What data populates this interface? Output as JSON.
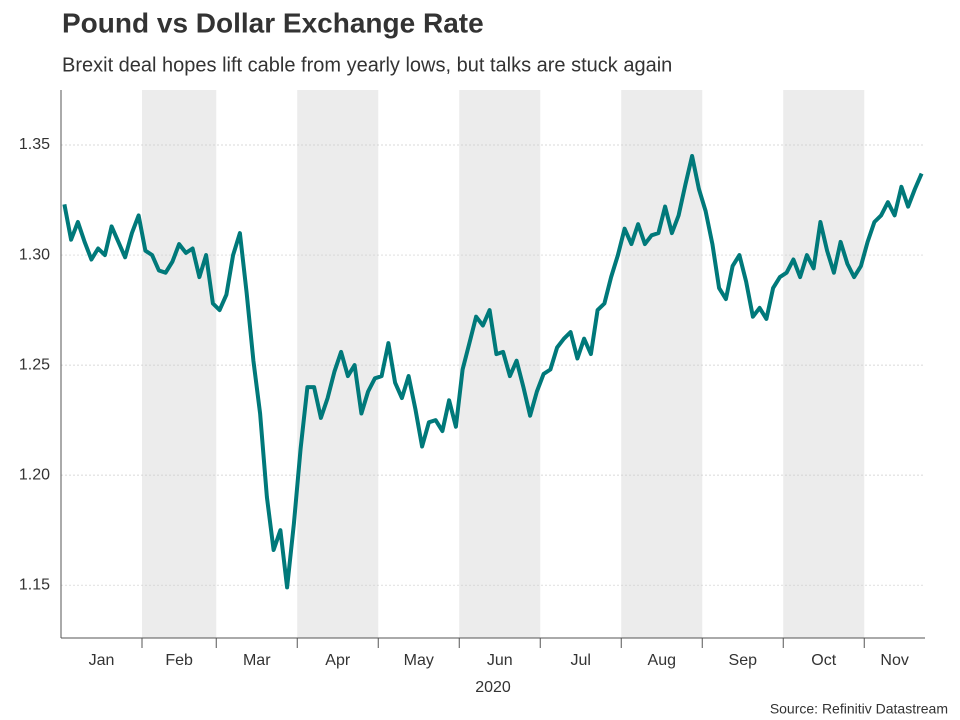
{
  "chart_data": {
    "type": "line",
    "title": "Pound vs Dollar Exchange Rate",
    "subtitle": "Brexit deal hopes lift cable from yearly lows, but talks are stuck again",
    "source": "Source: Refinitiv Datastream",
    "x_label": "2020",
    "color": "#00797a",
    "band_shading": true,
    "grid": true,
    "ylim": [
      1.126,
      1.375
    ],
    "yticks": [
      1.15,
      {
        "value": 1.2,
        "label": "1.20"
      },
      1.25,
      {
        "value": 1.3,
        "label": "1.30"
      },
      1.35
    ],
    "months": [
      {
        "label": "Jan",
        "values": [
          1.323,
          1.307,
          1.315,
          1.306,
          1.298,
          1.303,
          1.3,
          1.313,
          1.306,
          1.299,
          1.31,
          1.318
        ]
      },
      {
        "label": "Feb",
        "values": [
          1.302,
          1.3,
          1.293,
          1.292,
          1.297,
          1.305,
          1.301,
          1.303,
          1.29,
          1.3,
          1.278
        ]
      },
      {
        "label": "Mar",
        "values": [
          1.275,
          1.282,
          1.3,
          1.31,
          1.283,
          1.252,
          1.228,
          1.19,
          1.166,
          1.175,
          1.149,
          1.178
        ]
      },
      {
        "label": "Apr",
        "values": [
          1.212,
          1.24,
          1.24,
          1.226,
          1.235,
          1.247,
          1.256,
          1.245,
          1.25,
          1.228,
          1.238,
          1.244
        ]
      },
      {
        "label": "May",
        "values": [
          1.245,
          1.26,
          1.242,
          1.235,
          1.245,
          1.23,
          1.213,
          1.224,
          1.225,
          1.22,
          1.234,
          1.222
        ]
      },
      {
        "label": "Jun",
        "values": [
          1.248,
          1.26,
          1.272,
          1.268,
          1.275,
          1.255,
          1.256,
          1.245,
          1.252,
          1.24,
          1.227,
          1.238
        ]
      },
      {
        "label": "Jul",
        "values": [
          1.246,
          1.248,
          1.258,
          1.262,
          1.265,
          1.253,
          1.262,
          1.255,
          1.275,
          1.278,
          1.29,
          1.3
        ]
      },
      {
        "label": "Aug",
        "values": [
          1.312,
          1.305,
          1.314,
          1.305,
          1.309,
          1.31,
          1.322,
          1.31,
          1.318,
          1.332,
          1.345,
          1.33
        ]
      },
      {
        "label": "Sep",
        "values": [
          1.32,
          1.305,
          1.285,
          1.28,
          1.295,
          1.3,
          1.288,
          1.272,
          1.276,
          1.271,
          1.285,
          1.29
        ]
      },
      {
        "label": "Oct",
        "values": [
          1.292,
          1.298,
          1.29,
          1.3,
          1.294,
          1.315,
          1.302,
          1.292,
          1.306,
          1.296,
          1.29,
          1.295
        ]
      },
      {
        "label": "Nov",
        "values": [
          1.306,
          1.315,
          1.318,
          1.324,
          1.318,
          1.331,
          1.322,
          1.33,
          1.337
        ]
      }
    ]
  }
}
